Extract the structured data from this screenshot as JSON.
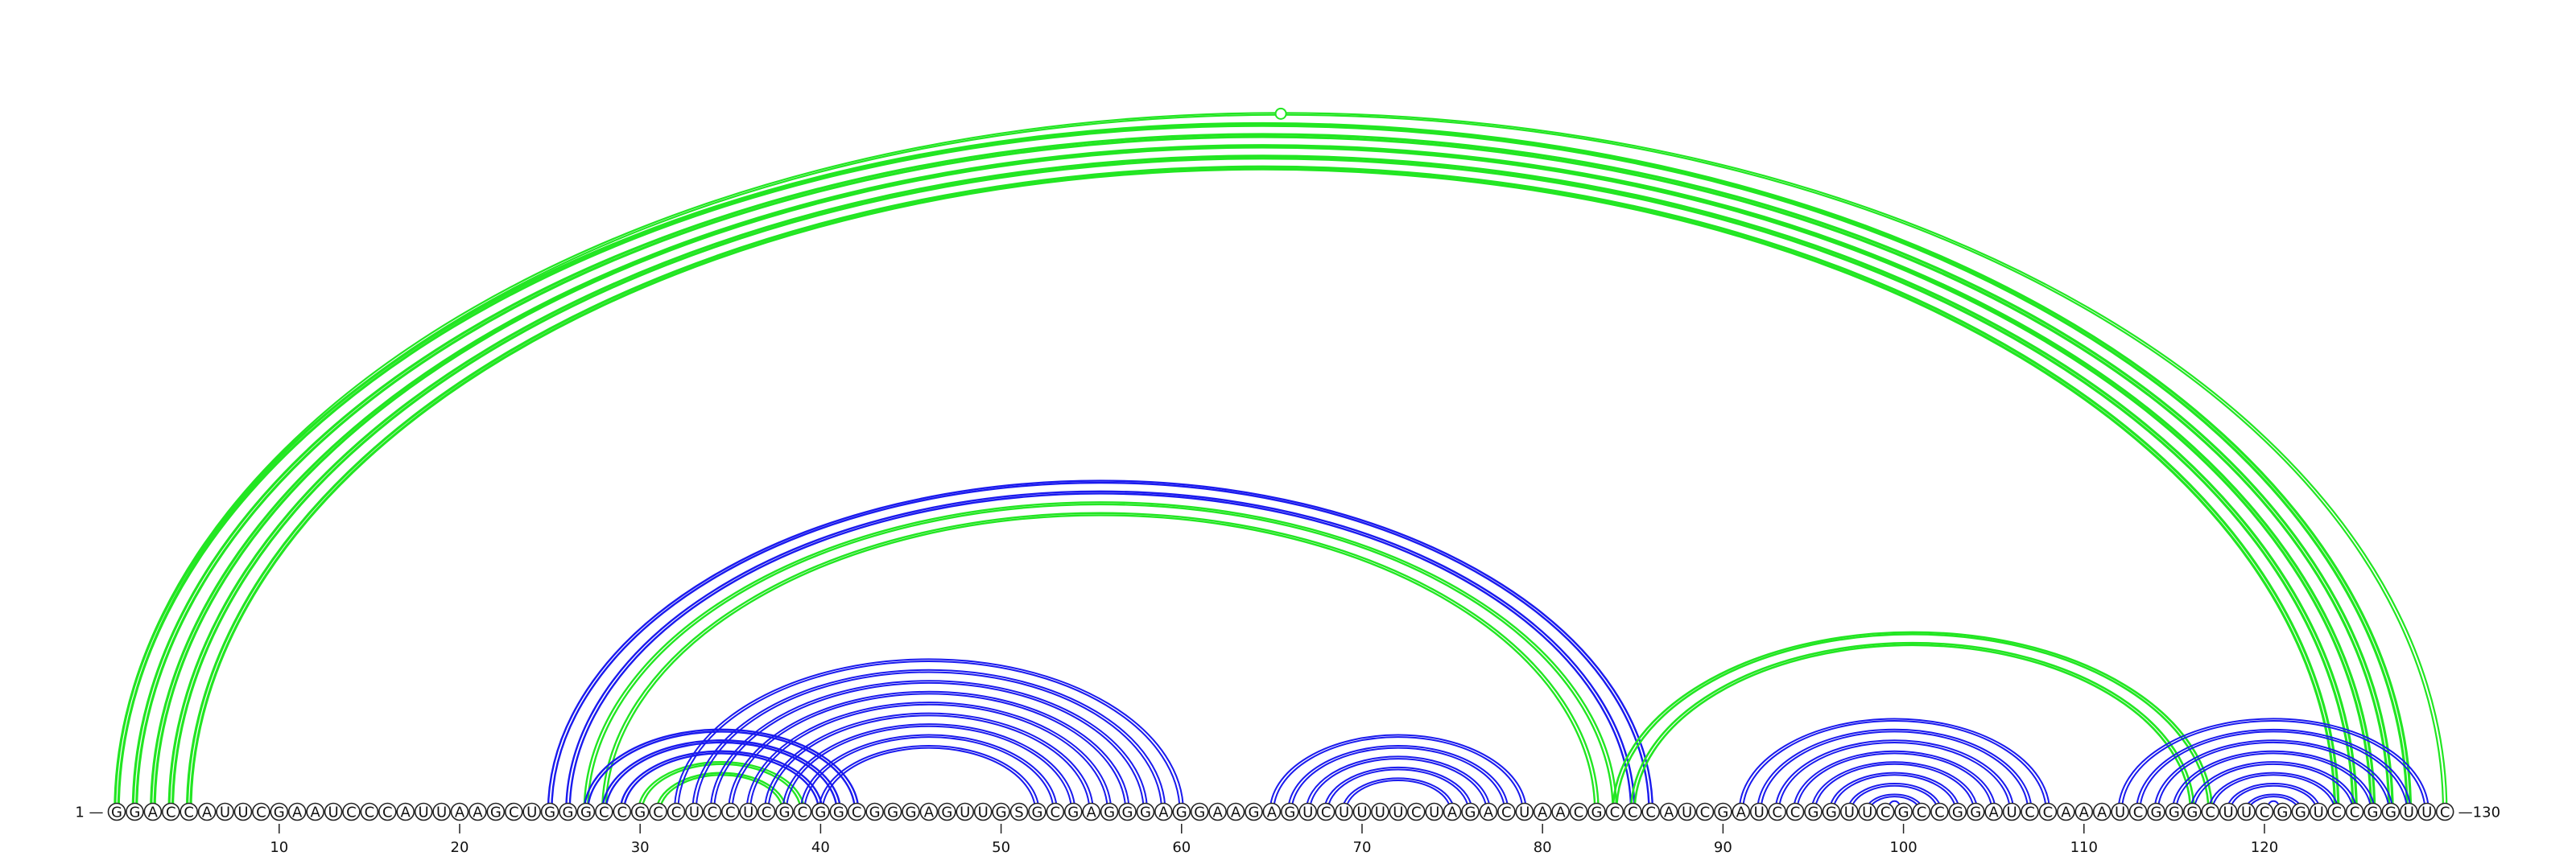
{
  "sequence": "GGACCAUUCGAAUCCCAUUAAGCUGGGCCGCCUCCUCGCGGCGGGAGUUGSGCGAGGGAGGAAGAGUCUUUUCUAGACUAACGCCCAUCGAUCCGGUUCGCCGGAUCCAAAUCGGGCUUCGGUCCGGUUC",
  "start_label": "1 —",
  "end_label": "—130",
  "ticks": [
    10,
    20,
    30,
    40,
    50,
    60,
    70,
    80,
    90,
    100,
    110,
    120
  ],
  "colors": {
    "blue": "#1a1aee",
    "green": "#22e622"
  },
  "arc_groups": [
    {
      "color": "green",
      "i": 1,
      "j": 128,
      "width": 3.2,
      "doubled": true
    },
    {
      "color": "green",
      "i": 2,
      "j": 127,
      "width": 3.2,
      "doubled": true
    },
    {
      "color": "green",
      "i": 3,
      "j": 126,
      "width": 3.2,
      "doubled": true
    },
    {
      "color": "green",
      "i": 4,
      "j": 125,
      "width": 3.2,
      "doubled": true
    },
    {
      "color": "green",
      "i": 5,
      "j": 124,
      "width": 3.2,
      "doubled": true
    },
    {
      "color": "green",
      "i": 1,
      "j": 130,
      "width": 2.2,
      "doubled": true,
      "open_circle": true
    },
    {
      "color": "blue",
      "i": 25,
      "j": 86,
      "width": 2.4,
      "doubled": true
    },
    {
      "color": "blue",
      "i": 26,
      "j": 85,
      "width": 2.4,
      "doubled": true
    },
    {
      "color": "green",
      "i": 27,
      "j": 84,
      "width": 2.4,
      "doubled": true
    },
    {
      "color": "green",
      "i": 28,
      "j": 83,
      "width": 2.4,
      "doubled": true
    },
    {
      "color": "blue",
      "i": 27,
      "j": 42,
      "width": 2.4,
      "doubled": true
    },
    {
      "color": "blue",
      "i": 28,
      "j": 41,
      "width": 2.4,
      "doubled": true
    },
    {
      "color": "blue",
      "i": 29,
      "j": 40,
      "width": 2.4,
      "doubled": true
    },
    {
      "color": "green",
      "i": 30,
      "j": 39,
      "width": 2.4,
      "doubled": true
    },
    {
      "color": "green",
      "i": 31,
      "j": 38,
      "width": 2.4,
      "doubled": true
    },
    {
      "color": "blue",
      "i": 32,
      "j": 60,
      "width": 2.0,
      "doubled": true
    },
    {
      "color": "blue",
      "i": 33,
      "j": 59,
      "width": 2.0,
      "doubled": true
    },
    {
      "color": "blue",
      "i": 34,
      "j": 58,
      "width": 2.0,
      "doubled": true
    },
    {
      "color": "blue",
      "i": 35,
      "j": 57,
      "width": 2.0,
      "doubled": true
    },
    {
      "color": "blue",
      "i": 36,
      "j": 56,
      "width": 2.0,
      "doubled": true
    },
    {
      "color": "blue",
      "i": 37,
      "j": 55,
      "width": 2.0,
      "doubled": true
    },
    {
      "color": "blue",
      "i": 38,
      "j": 54,
      "width": 2.0,
      "doubled": true
    },
    {
      "color": "blue",
      "i": 39,
      "j": 53,
      "width": 2.0,
      "doubled": true
    },
    {
      "color": "blue",
      "i": 40,
      "j": 52,
      "width": 2.0,
      "doubled": true
    },
    {
      "color": "blue",
      "i": 65,
      "j": 79,
      "width": 2.0,
      "doubled": true
    },
    {
      "color": "blue",
      "i": 66,
      "j": 78,
      "width": 2.0,
      "doubled": true
    },
    {
      "color": "blue",
      "i": 67,
      "j": 77,
      "width": 2.0,
      "doubled": true
    },
    {
      "color": "blue",
      "i": 68,
      "j": 76,
      "width": 2.0,
      "doubled": true
    },
    {
      "color": "blue",
      "i": 69,
      "j": 75,
      "width": 2.0,
      "doubled": true
    },
    {
      "color": "green",
      "i": 84,
      "j": 117,
      "width": 2.6,
      "doubled": true
    },
    {
      "color": "green",
      "i": 85,
      "j": 116,
      "width": 2.6,
      "doubled": true
    },
    {
      "color": "blue",
      "i": 91,
      "j": 108,
      "width": 2.0,
      "doubled": true
    },
    {
      "color": "blue",
      "i": 92,
      "j": 107,
      "width": 2.0,
      "doubled": true
    },
    {
      "color": "blue",
      "i": 93,
      "j": 106,
      "width": 2.0,
      "doubled": true
    },
    {
      "color": "blue",
      "i": 94,
      "j": 105,
      "width": 2.0,
      "doubled": true
    },
    {
      "color": "blue",
      "i": 95,
      "j": 104,
      "width": 2.0,
      "doubled": true
    },
    {
      "color": "blue",
      "i": 96,
      "j": 103,
      "width": 2.0,
      "doubled": true
    },
    {
      "color": "blue",
      "i": 97,
      "j": 102,
      "width": 2.0,
      "doubled": true
    },
    {
      "color": "blue",
      "i": 98,
      "j": 101,
      "width": 2.0,
      "doubled": true
    },
    {
      "color": "blue",
      "i": 99,
      "j": 100,
      "width": 2.0,
      "doubled": false,
      "open_circle": true
    },
    {
      "color": "blue",
      "i": 112,
      "j": 129,
      "width": 2.0,
      "doubled": true
    },
    {
      "color": "blue",
      "i": 113,
      "j": 128,
      "width": 2.0,
      "doubled": true
    },
    {
      "color": "blue",
      "i": 114,
      "j": 127,
      "width": 2.0,
      "doubled": true
    },
    {
      "color": "blue",
      "i": 115,
      "j": 126,
      "width": 2.0,
      "doubled": true
    },
    {
      "color": "blue",
      "i": 116,
      "j": 125,
      "width": 2.0,
      "doubled": true
    },
    {
      "color": "blue",
      "i": 117,
      "j": 124,
      "width": 2.0,
      "doubled": true
    },
    {
      "color": "blue",
      "i": 118,
      "j": 123,
      "width": 2.0,
      "doubled": true
    },
    {
      "color": "blue",
      "i": 119,
      "j": 122,
      "width": 2.0,
      "doubled": true
    },
    {
      "color": "blue",
      "i": 120,
      "j": 121,
      "width": 2.0,
      "doubled": false,
      "open_circle": true
    }
  ]
}
